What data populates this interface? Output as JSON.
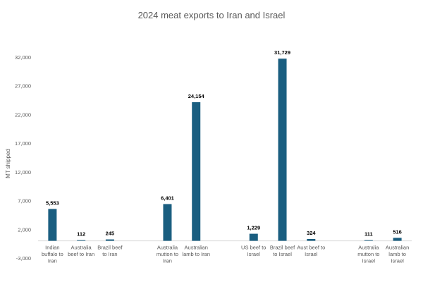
{
  "chart_data": {
    "type": "bar",
    "title": "2024 meat exports to Iran and Israel",
    "ylabel": "MT shipped",
    "xlabel": "",
    "ylim": [
      -3000,
      32000
    ],
    "yticks": [
      -3000,
      2000,
      7000,
      12000,
      17000,
      22000,
      27000,
      32000
    ],
    "ytick_labels": [
      "-3,000",
      "2,000",
      "7,000",
      "12,000",
      "17,000",
      "22,000",
      "27,000",
      "32,000"
    ],
    "grid": false,
    "bar_color": "#1a5e80",
    "categories": [
      "Indian buffalo to Iran",
      "Australia beef to Iran",
      "Brazil beef to Iran",
      "",
      "Australia mutton to Iran",
      "Australian lamb to Iran",
      "",
      "US beef to Israel",
      "Brazil beef to Israel",
      "Aust beef to Israel",
      "",
      "Australia mutton to Israel",
      "Australian lamb to Israel"
    ],
    "category_lines": [
      [
        "Indian",
        "buffalo to",
        "Iran"
      ],
      [
        "Australia",
        "beef to Iran"
      ],
      [
        "Brazil beef",
        "to Iran"
      ],
      [],
      [
        "Australia",
        "mutton to",
        "Iran"
      ],
      [
        "Australian",
        "lamb to Iran"
      ],
      [],
      [
        "US beef to",
        "Israel"
      ],
      [
        "Brazil beef",
        "to Israel"
      ],
      [
        "Aust beef to",
        "Israel"
      ],
      [],
      [
        "Australia",
        "mutton to",
        "Israel"
      ],
      [
        "Australian",
        "lamb to",
        "Israel"
      ]
    ],
    "values": [
      5553,
      112,
      245,
      null,
      6401,
      24154,
      null,
      1229,
      31729,
      324,
      null,
      111,
      516
    ],
    "data_labels": [
      "5,553",
      "112",
      "245",
      "",
      "6,401",
      "24,154",
      "",
      "1,229",
      "31,729",
      "324",
      "",
      "111",
      "516"
    ]
  }
}
